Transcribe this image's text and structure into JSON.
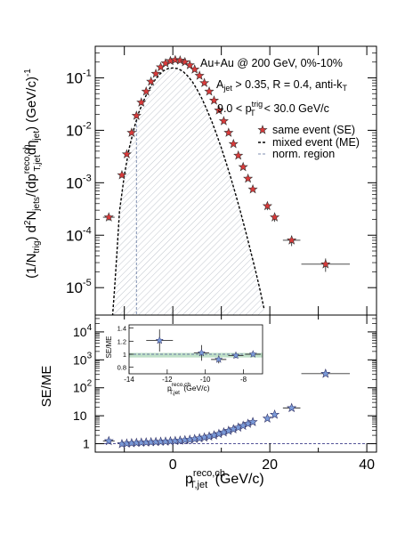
{
  "chart_data": [
    {
      "type": "scatter",
      "panel": "top",
      "ylabel_parts": {
        "a": "(1/N",
        "a_sub": "trig",
        "b": ") d",
        "b_sup": "2",
        "c": "N",
        "c_sub": "jets",
        "d": "/(dp",
        "d_sup": "reco,ch",
        "d_sub": "T,jet",
        "e": "dη",
        "e_sub": "jet",
        "f": ")  (GeV/c)",
        "f_sup": "-1"
      },
      "x_range": [
        -16,
        42
      ],
      "y_range": [
        3e-06,
        0.4
      ],
      "y_scale": "log",
      "y_ticks": [
        {
          "value": 1e-05,
          "base": "10",
          "exp": "-5"
        },
        {
          "value": 0.0001,
          "base": "10",
          "exp": "-4"
        },
        {
          "value": 0.001,
          "base": "10",
          "exp": "-3"
        },
        {
          "value": 0.01,
          "base": "10",
          "exp": "-2"
        },
        {
          "value": 0.1,
          "base": "10",
          "exp": "-1"
        }
      ],
      "annotations": {
        "line1": "Au+Au @ 200 GeV, 0%-10%",
        "line2_a": "A",
        "line2_a_sub": "jet",
        "line2_b": " > 0.35, R = 0.4, anti-k",
        "line2_b_sub": "T",
        "line3_a": "9.0 < p",
        "line3_a_sup": "trig",
        "line3_a_sub": "T",
        "line3_b": "< 30.0 GeV/c"
      },
      "legend": {
        "position": "right",
        "se": "same event (SE)",
        "me": "mixed event (ME)",
        "norm": "norm. region"
      },
      "norm_region": [
        -14,
        -7.5
      ],
      "colors": {
        "se_fill": "#d93a3a",
        "se_edge": "#333333",
        "me_line": "#000000",
        "norm_line": "#7f8fb0",
        "hatch": "#b0b6c0"
      },
      "se_points": [
        {
          "x": -13.2,
          "y": 0.00022,
          "xerr": 1.2,
          "yerr": 3e-05
        },
        {
          "x": -10.5,
          "y": 0.0014
        },
        {
          "x": -9.5,
          "y": 0.0035
        },
        {
          "x": -8.5,
          "y": 0.009
        },
        {
          "x": -7.5,
          "y": 0.019
        },
        {
          "x": -6.5,
          "y": 0.034
        },
        {
          "x": -5.5,
          "y": 0.055
        },
        {
          "x": -4.5,
          "y": 0.085
        },
        {
          "x": -3.5,
          "y": 0.12
        },
        {
          "x": -2.5,
          "y": 0.16
        },
        {
          "x": -1.5,
          "y": 0.19
        },
        {
          "x": -0.5,
          "y": 0.21
        },
        {
          "x": 0.5,
          "y": 0.22
        },
        {
          "x": 1.5,
          "y": 0.215
        },
        {
          "x": 2.5,
          "y": 0.2
        },
        {
          "x": 3.5,
          "y": 0.175
        },
        {
          "x": 4.5,
          "y": 0.145
        },
        {
          "x": 5.5,
          "y": 0.11
        },
        {
          "x": 6.5,
          "y": 0.08
        },
        {
          "x": 7.5,
          "y": 0.055
        },
        {
          "x": 8.5,
          "y": 0.037
        },
        {
          "x": 9.5,
          "y": 0.024
        },
        {
          "x": 10.5,
          "y": 0.015
        },
        {
          "x": 11.5,
          "y": 0.009
        },
        {
          "x": 12.5,
          "y": 0.0055
        },
        {
          "x": 13.5,
          "y": 0.0033
        },
        {
          "x": 14.5,
          "y": 0.002
        },
        {
          "x": 15.5,
          "y": 0.0012
        },
        {
          "x": 16.5,
          "y": 0.00075
        },
        {
          "x": 19.5,
          "y": 0.00036,
          "yerr": 6e-05
        },
        {
          "x": 21.0,
          "y": 0.00022,
          "yerr": 4e-05
        },
        {
          "x": 24.5,
          "y": 8e-05,
          "xerr": 1.8,
          "yerr": 1.8e-05
        },
        {
          "x": 31.5,
          "y": 2.8e-05,
          "xerr": 5.0,
          "yerr": 8e-06
        }
      ],
      "me_curve": [
        {
          "x": -12.5,
          "y": 1e-06
        },
        {
          "x": -12.0,
          "y": 1e-05
        },
        {
          "x": -11.5,
          "y": 5e-05
        },
        {
          "x": -11.0,
          "y": 0.00028
        },
        {
          "x": -10.0,
          "y": 0.0014
        },
        {
          "x": -9.0,
          "y": 0.0045
        },
        {
          "x": -8.0,
          "y": 0.011
        },
        {
          "x": -7.0,
          "y": 0.022
        },
        {
          "x": -6.0,
          "y": 0.037
        },
        {
          "x": -5.0,
          "y": 0.058
        },
        {
          "x": -4.0,
          "y": 0.083
        },
        {
          "x": -3.0,
          "y": 0.11
        },
        {
          "x": -2.0,
          "y": 0.135
        },
        {
          "x": -1.0,
          "y": 0.15
        },
        {
          "x": 0.0,
          "y": 0.155
        },
        {
          "x": 1.0,
          "y": 0.15
        },
        {
          "x": 2.0,
          "y": 0.135
        },
        {
          "x": 3.0,
          "y": 0.11
        },
        {
          "x": 4.0,
          "y": 0.085
        },
        {
          "x": 5.0,
          "y": 0.06
        },
        {
          "x": 6.0,
          "y": 0.04
        },
        {
          "x": 7.0,
          "y": 0.025
        },
        {
          "x": 8.0,
          "y": 0.015
        },
        {
          "x": 9.0,
          "y": 0.0085
        },
        {
          "x": 10.0,
          "y": 0.0046
        },
        {
          "x": 11.0,
          "y": 0.0024
        },
        {
          "x": 12.0,
          "y": 0.0012
        },
        {
          "x": 13.0,
          "y": 0.00058
        },
        {
          "x": 14.0,
          "y": 0.00027
        },
        {
          "x": 15.0,
          "y": 0.00012
        },
        {
          "x": 16.0,
          "y": 5.2e-05
        },
        {
          "x": 17.0,
          "y": 2.2e-05
        },
        {
          "x": 18.0,
          "y": 9e-06
        },
        {
          "x": 18.8,
          "y": 4e-06
        }
      ]
    },
    {
      "type": "scatter",
      "panel": "bottom",
      "ylabel": "SE/ME",
      "x_range": [
        -16,
        42
      ],
      "y_range": [
        0.5,
        40000
      ],
      "y_scale": "log",
      "y_ticks": [
        {
          "value": 1,
          "base": "1",
          "exp": ""
        },
        {
          "value": 10,
          "base": "10",
          "exp": ""
        },
        {
          "value": 100,
          "base": "10",
          "exp": "2"
        },
        {
          "value": 1000,
          "base": "10",
          "exp": "3"
        },
        {
          "value": 10000,
          "base": "10",
          "exp": "4"
        }
      ],
      "x_ticks": [
        0,
        20,
        40
      ],
      "xlabel_parts": {
        "a": "p",
        "a_sup": "reco,ch",
        "a_sub": "T,jet",
        "b": "  (GeV/c)"
      },
      "colors": {
        "fill": "#7a9ad8",
        "edge": "#333366",
        "ref": "#555599"
      },
      "points": [
        {
          "x": -13.2,
          "y": 1.25,
          "xerr": 1.2
        },
        {
          "x": -10.5,
          "y": 0.98
        },
        {
          "x": -9.5,
          "y": 1.02
        },
        {
          "x": -8.5,
          "y": 1.05
        },
        {
          "x": -7.5,
          "y": 1.08
        },
        {
          "x": -6.5,
          "y": 1.1
        },
        {
          "x": -5.5,
          "y": 1.12
        },
        {
          "x": -4.5,
          "y": 1.14
        },
        {
          "x": -3.5,
          "y": 1.16
        },
        {
          "x": -2.5,
          "y": 1.18
        },
        {
          "x": -1.5,
          "y": 1.2
        },
        {
          "x": -0.5,
          "y": 1.23
        },
        {
          "x": 0.5,
          "y": 1.26
        },
        {
          "x": 1.5,
          "y": 1.3
        },
        {
          "x": 2.5,
          "y": 1.35
        },
        {
          "x": 3.5,
          "y": 1.4
        },
        {
          "x": 4.5,
          "y": 1.48
        },
        {
          "x": 5.5,
          "y": 1.57
        },
        {
          "x": 6.5,
          "y": 1.68
        },
        {
          "x": 7.5,
          "y": 1.82
        },
        {
          "x": 8.5,
          "y": 2.0
        },
        {
          "x": 9.5,
          "y": 2.25
        },
        {
          "x": 10.5,
          "y": 2.55
        },
        {
          "x": 11.5,
          "y": 2.9
        },
        {
          "x": 12.5,
          "y": 3.3
        },
        {
          "x": 13.5,
          "y": 3.8
        },
        {
          "x": 14.5,
          "y": 4.4
        },
        {
          "x": 15.5,
          "y": 5.2
        },
        {
          "x": 16.5,
          "y": 6.0
        },
        {
          "x": 19.5,
          "y": 8.0
        },
        {
          "x": 21.0,
          "y": 11.0
        },
        {
          "x": 24.5,
          "y": 19.0,
          "xerr": 1.8
        },
        {
          "x": 31.5,
          "y": 320,
          "xerr": 5.0
        }
      ]
    },
    {
      "type": "scatter",
      "panel": "inset",
      "ylabel": "SE/ME",
      "x_range": [
        -14,
        -7
      ],
      "y_range": [
        0.7,
        1.45
      ],
      "x_ticks": [
        -14,
        -12,
        -10,
        -8
      ],
      "y_ticks": [
        0.8,
        1.0,
        1.2,
        1.4
      ],
      "y_tick_labels": [
        "0.8",
        "1",
        "1.2",
        "1.4"
      ],
      "xlabel_parts": {
        "a": "p",
        "a_sup": "reco,ch",
        "a_sub": "T,jet",
        "b": " (GeV/c)"
      },
      "band": [
        0.95,
        1.02
      ],
      "colors": {
        "band": "#bfe0c8",
        "ref": "#6a7aa0"
      },
      "points": [
        {
          "x": -12.4,
          "y": 1.21,
          "xerr": 0.7,
          "yerr": 0.17
        },
        {
          "x": -10.2,
          "y": 1.02,
          "xerr": 0.4,
          "yerr": 0.12
        },
        {
          "x": -9.3,
          "y": 0.92,
          "xerr": 0.4,
          "yerr": 0.06
        },
        {
          "x": -8.4,
          "y": 0.98,
          "xerr": 0.4,
          "yerr": 0.04
        },
        {
          "x": -7.5,
          "y": 1.0,
          "xerr": 0.4,
          "yerr": 0.03
        }
      ]
    }
  ]
}
